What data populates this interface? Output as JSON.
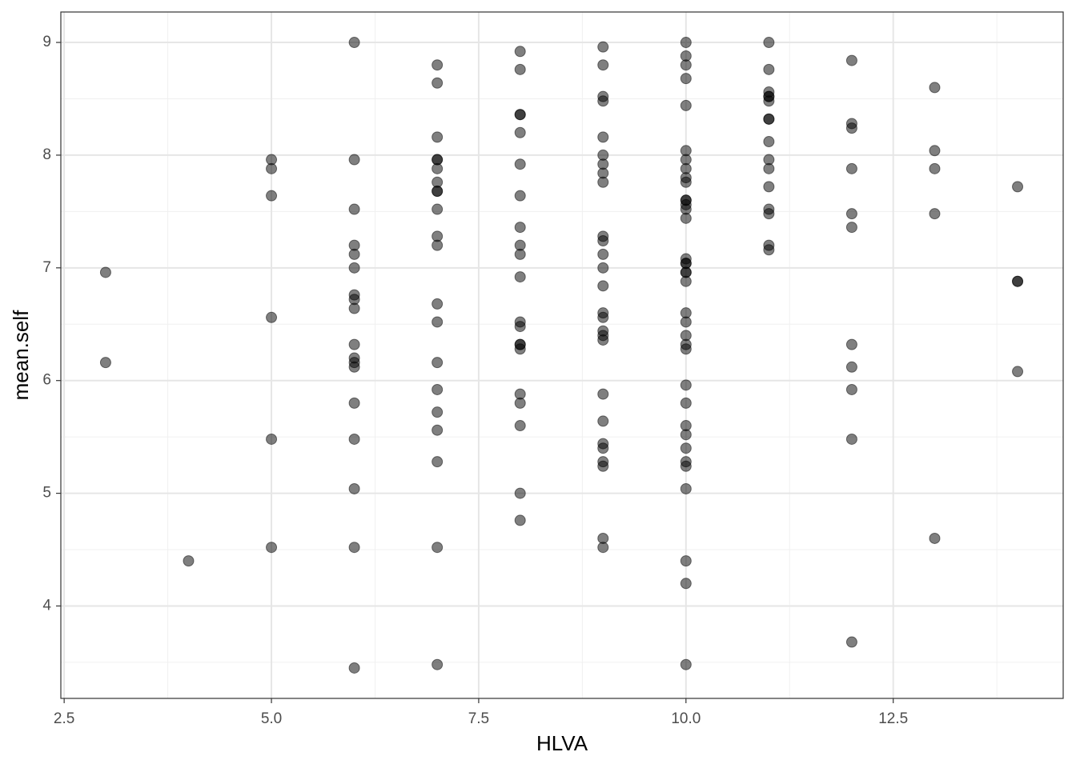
{
  "chart_data": {
    "type": "scatter",
    "x_label": "HLVA",
    "y_label": "mean.self",
    "color": "#000000",
    "opacity": 0.5,
    "grid": true,
    "xlim": [
      2.46,
      14.55
    ],
    "ylim": [
      3.18,
      9.27
    ],
    "xticks": [
      2.5,
      {
        "value": 5,
        "label": "5.0"
      },
      7.5,
      {
        "value": 10,
        "label": "10.0"
      },
      12.5
    ],
    "yticks": [
      4,
      5,
      6,
      7,
      8,
      9
    ],
    "xminor": [
      3.75,
      6.25,
      8.75,
      11.25,
      13.75
    ],
    "yminor": [
      3.5,
      4.5,
      5.5,
      6.5,
      7.5,
      8.5
    ],
    "x": [
      3,
      3,
      4,
      5,
      5,
      5,
      5,
      5,
      5,
      6,
      6,
      6,
      6,
      6,
      6,
      6,
      6,
      6,
      6,
      6,
      6,
      6,
      6,
      6,
      6,
      6,
      6,
      7,
      7,
      7,
      7,
      7,
      7,
      7,
      7,
      7,
      7,
      7,
      7,
      7,
      7,
      7,
      7,
      7,
      7,
      7,
      7,
      7,
      8,
      8,
      8,
      8,
      8,
      8,
      8,
      8,
      8,
      8,
      8,
      8,
      8,
      8,
      8,
      8,
      8,
      8,
      8,
      8,
      8,
      9,
      9,
      9,
      9,
      9,
      9,
      9,
      9,
      9,
      9,
      9,
      9,
      9,
      9,
      9,
      9,
      9,
      9,
      9,
      9,
      9,
      9,
      9,
      9,
      9,
      9,
      9,
      10,
      10,
      10,
      10,
      10,
      10,
      10,
      10,
      10,
      10,
      10,
      10,
      10,
      10,
      10,
      10,
      10,
      10,
      10,
      10,
      10,
      10,
      10,
      10,
      10,
      10,
      10,
      10,
      10,
      10,
      10,
      10,
      10,
      10,
      10,
      10,
      10,
      11,
      11,
      11,
      11,
      11,
      11,
      11,
      11,
      11,
      11,
      11,
      11,
      11,
      11,
      11,
      11,
      12,
      12,
      12,
      12,
      12,
      12,
      12,
      12,
      12,
      12,
      12,
      13,
      13,
      13,
      13,
      13,
      14,
      14,
      14,
      14
    ],
    "values": [
      6.96,
      6.16,
      4.4,
      7.96,
      7.88,
      7.64,
      6.56,
      5.48,
      4.52,
      9.0,
      7.96,
      7.52,
      7.2,
      7.12,
      7.0,
      6.76,
      6.72,
      6.64,
      6.32,
      6.2,
      6.16,
      6.12,
      5.8,
      5.48,
      5.04,
      4.52,
      3.45,
      8.8,
      8.64,
      8.16,
      7.96,
      7.96,
      7.88,
      7.76,
      7.68,
      7.68,
      7.52,
      7.28,
      7.2,
      6.68,
      6.52,
      6.16,
      5.92,
      5.72,
      5.56,
      5.28,
      4.52,
      3.48,
      8.92,
      8.76,
      8.36,
      8.36,
      8.2,
      7.92,
      7.64,
      7.36,
      7.2,
      7.12,
      6.92,
      6.52,
      6.48,
      6.32,
      6.32,
      6.28,
      5.88,
      5.8,
      5.6,
      5.0,
      4.76,
      8.96,
      8.8,
      8.52,
      8.48,
      8.16,
      8.0,
      7.92,
      7.84,
      7.76,
      7.28,
      7.24,
      7.12,
      7.0,
      6.84,
      6.6,
      6.56,
      6.44,
      6.4,
      6.36,
      5.88,
      5.64,
      5.44,
      5.4,
      5.28,
      5.24,
      4.6,
      4.52,
      9.0,
      8.88,
      8.8,
      8.68,
      8.44,
      8.04,
      7.96,
      7.88,
      7.8,
      7.76,
      7.6,
      7.6,
      7.56,
      7.52,
      7.44,
      7.08,
      7.04,
      7.04,
      6.96,
      6.96,
      6.88,
      6.6,
      6.52,
      6.4,
      6.32,
      6.28,
      5.96,
      5.8,
      5.6,
      5.52,
      5.4,
      5.28,
      5.24,
      5.04,
      4.4,
      4.2,
      3.48,
      9.0,
      8.76,
      8.56,
      8.52,
      8.52,
      8.48,
      8.32,
      8.32,
      8.12,
      7.96,
      7.88,
      7.72,
      7.52,
      7.48,
      7.2,
      7.16,
      8.84,
      8.28,
      8.24,
      7.88,
      7.48,
      7.36,
      6.32,
      6.12,
      5.92,
      5.48,
      3.68,
      8.6,
      8.04,
      7.88,
      7.48,
      4.6,
      7.72,
      6.88,
      6.88,
      6.08
    ]
  }
}
